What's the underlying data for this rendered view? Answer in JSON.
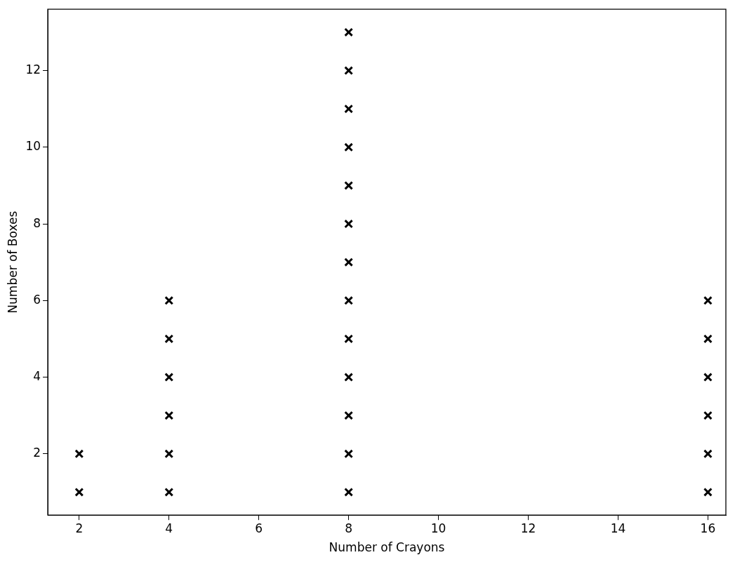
{
  "chart_data": {
    "type": "scatter",
    "xlabel": "Number of Crayons",
    "ylabel": "Number of Boxes",
    "marker": "cross",
    "grid": false,
    "legend": false,
    "xlim": [
      1.3,
      16.4
    ],
    "xticks": [
      2,
      4,
      6,
      8,
      10,
      12,
      14,
      16
    ],
    "ylim": [
      0.4,
      13.6
    ],
    "yticks": [
      2,
      4,
      6,
      8,
      10,
      12
    ],
    "series": [
      {
        "color": "#000000",
        "x": [
          2,
          2,
          4,
          4,
          4,
          4,
          4,
          4,
          8,
          8,
          8,
          8,
          8,
          8,
          8,
          8,
          8,
          8,
          8,
          8,
          8,
          16,
          16,
          16,
          16,
          16,
          16
        ],
        "values": [
          1,
          2,
          1,
          2,
          3,
          4,
          5,
          6,
          1,
          2,
          3,
          4,
          5,
          6,
          7,
          8,
          9,
          10,
          11,
          12,
          13,
          1,
          2,
          3,
          4,
          5,
          6
        ]
      }
    ]
  }
}
